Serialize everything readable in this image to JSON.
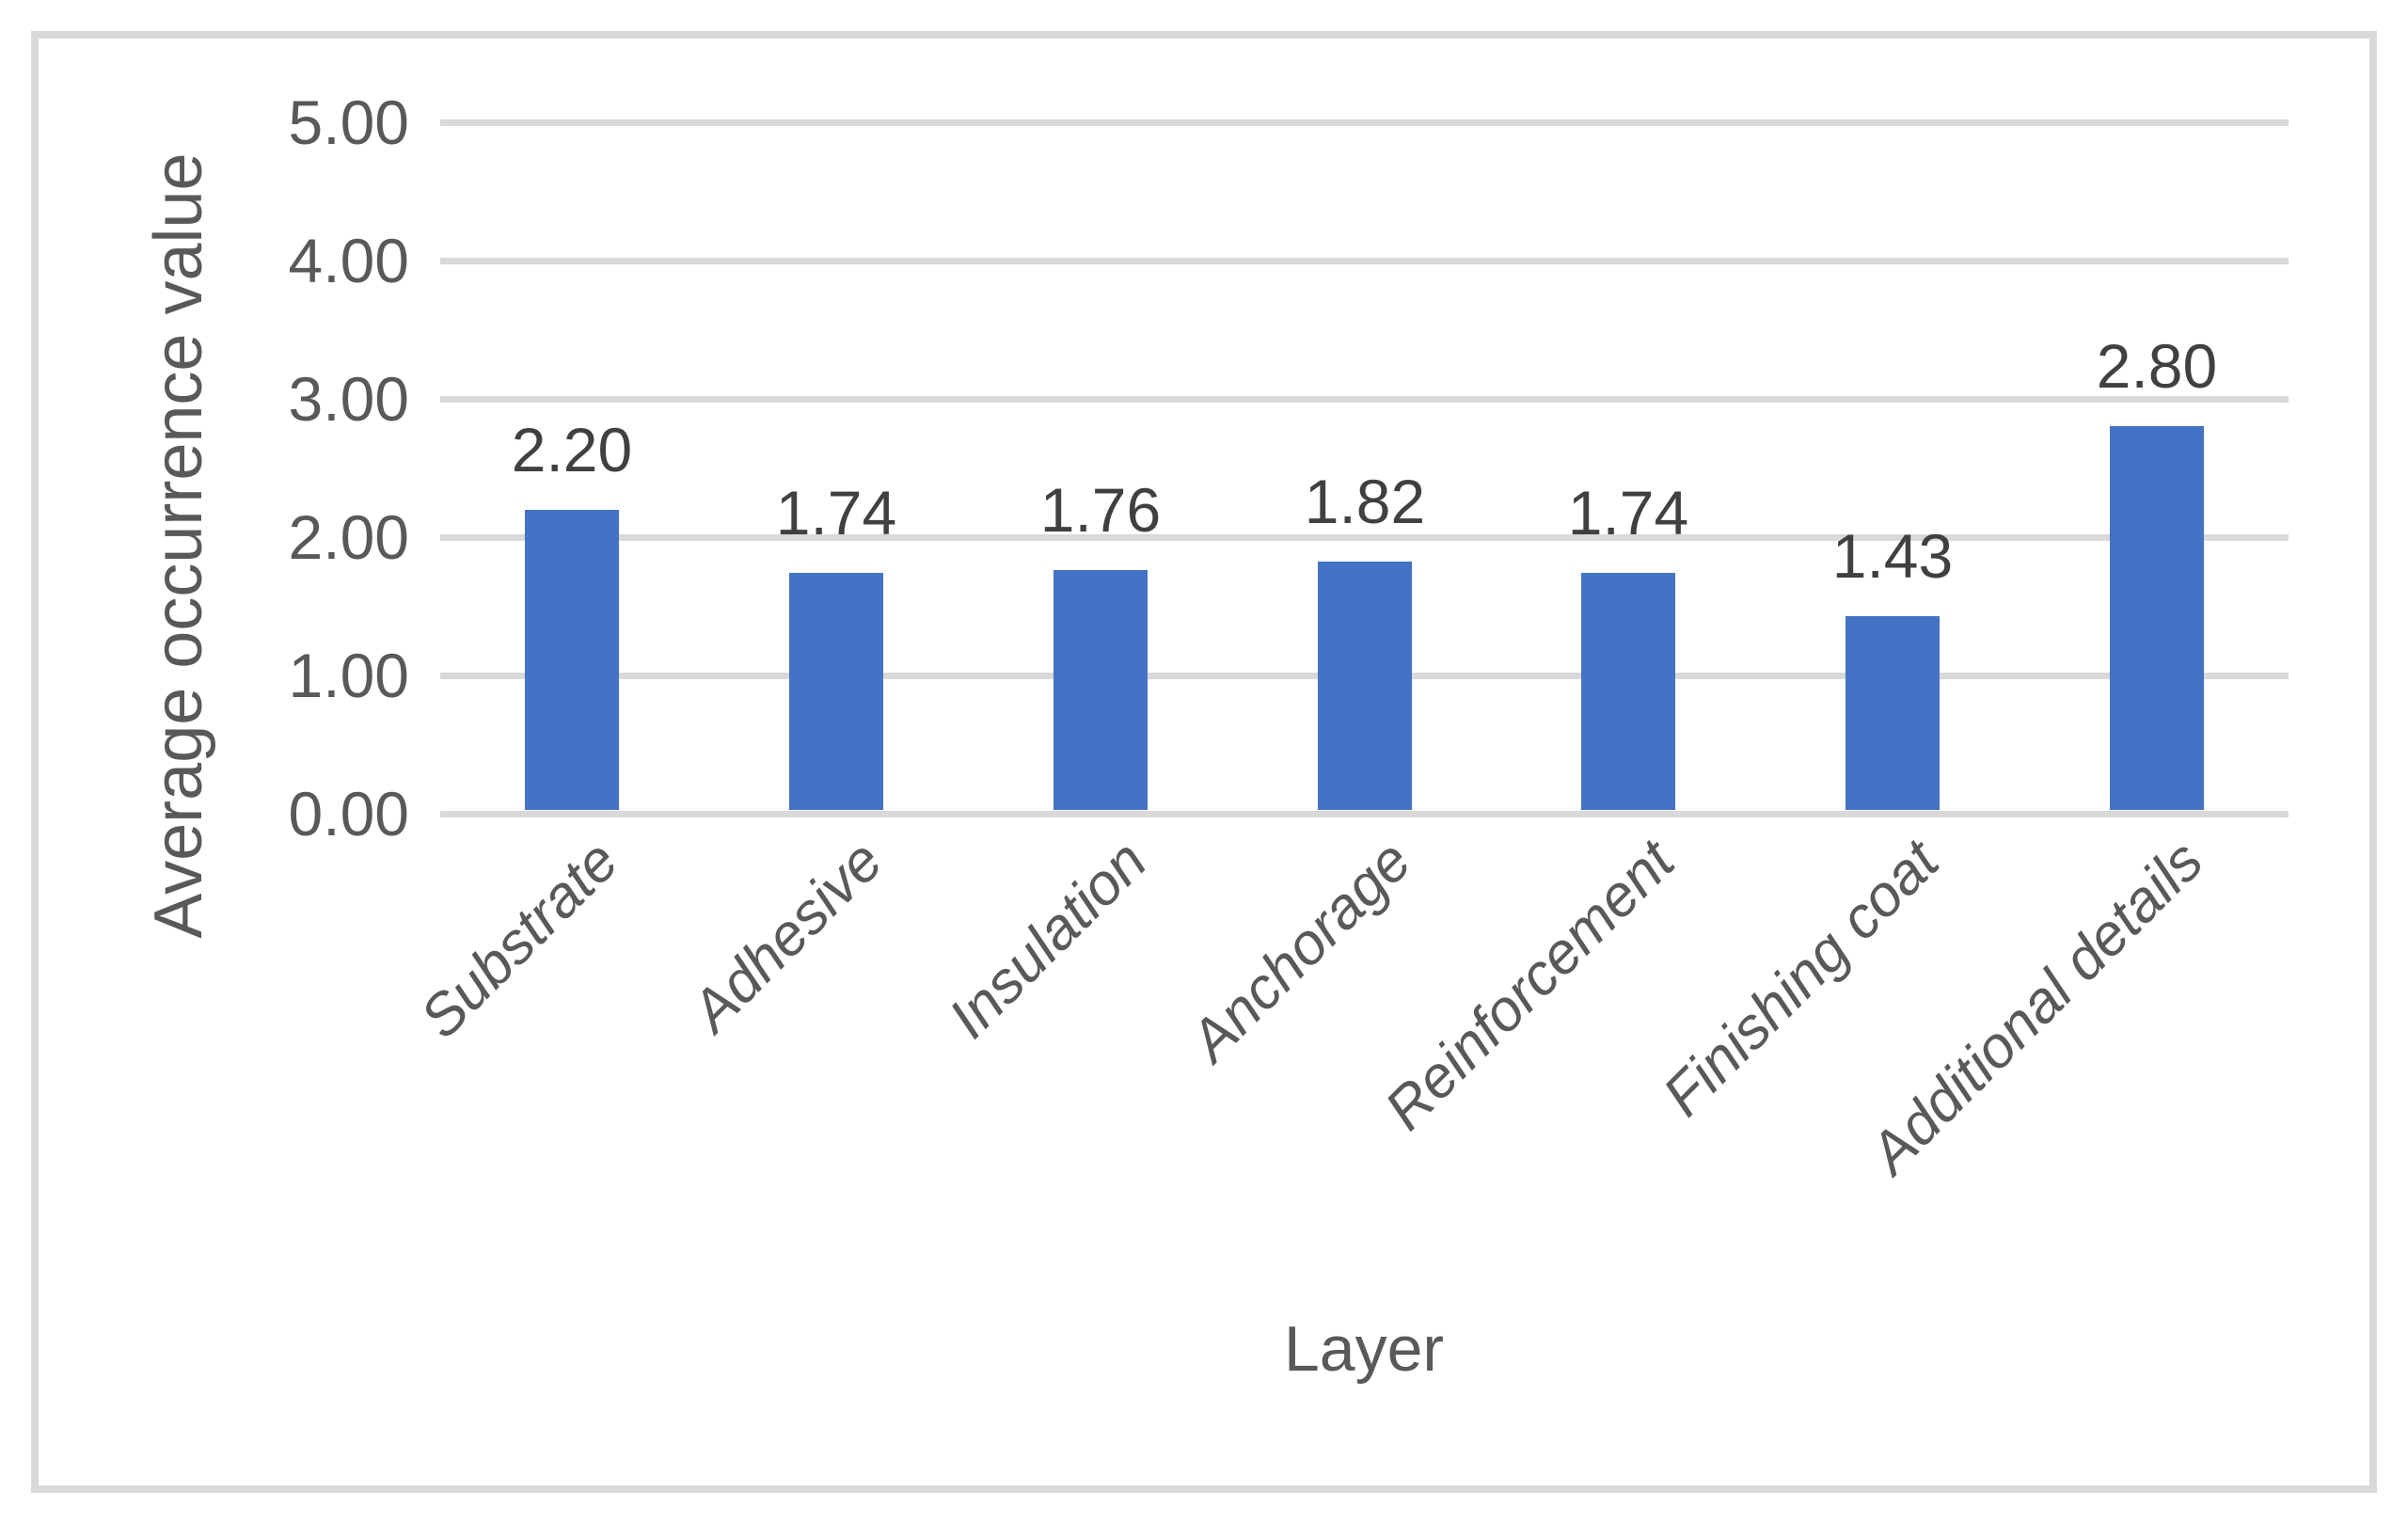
{
  "chart_data": {
    "type": "bar",
    "categories": [
      "Substrate",
      "Adhesive",
      "Insulation",
      "Anchorage",
      "Reinforcement",
      "Finishing coat",
      "Additional details"
    ],
    "values": [
      2.2,
      1.74,
      1.76,
      1.82,
      1.74,
      1.43,
      2.8
    ],
    "data_labels": [
      "2.20",
      "1.74",
      "1.76",
      "1.82",
      "1.74",
      "1.43",
      "2.80"
    ],
    "title": "",
    "xlabel": "Layer",
    "ylabel": "Average occurrence value",
    "ylim": [
      0,
      5
    ],
    "ytick_step": 1,
    "ytick_labels": [
      "0.00",
      "1.00",
      "2.00",
      "3.00",
      "4.00",
      "5.00"
    ],
    "grid": true,
    "legend_position": "none",
    "colors": {
      "bar": "#4472C4",
      "gridline": "#D9D9D9",
      "axis_line": "#D9D9D9",
      "text": "#595959",
      "data_label_text": "#404040",
      "chart_border": "#D9D9D9",
      "background": "#FFFFFF"
    }
  }
}
